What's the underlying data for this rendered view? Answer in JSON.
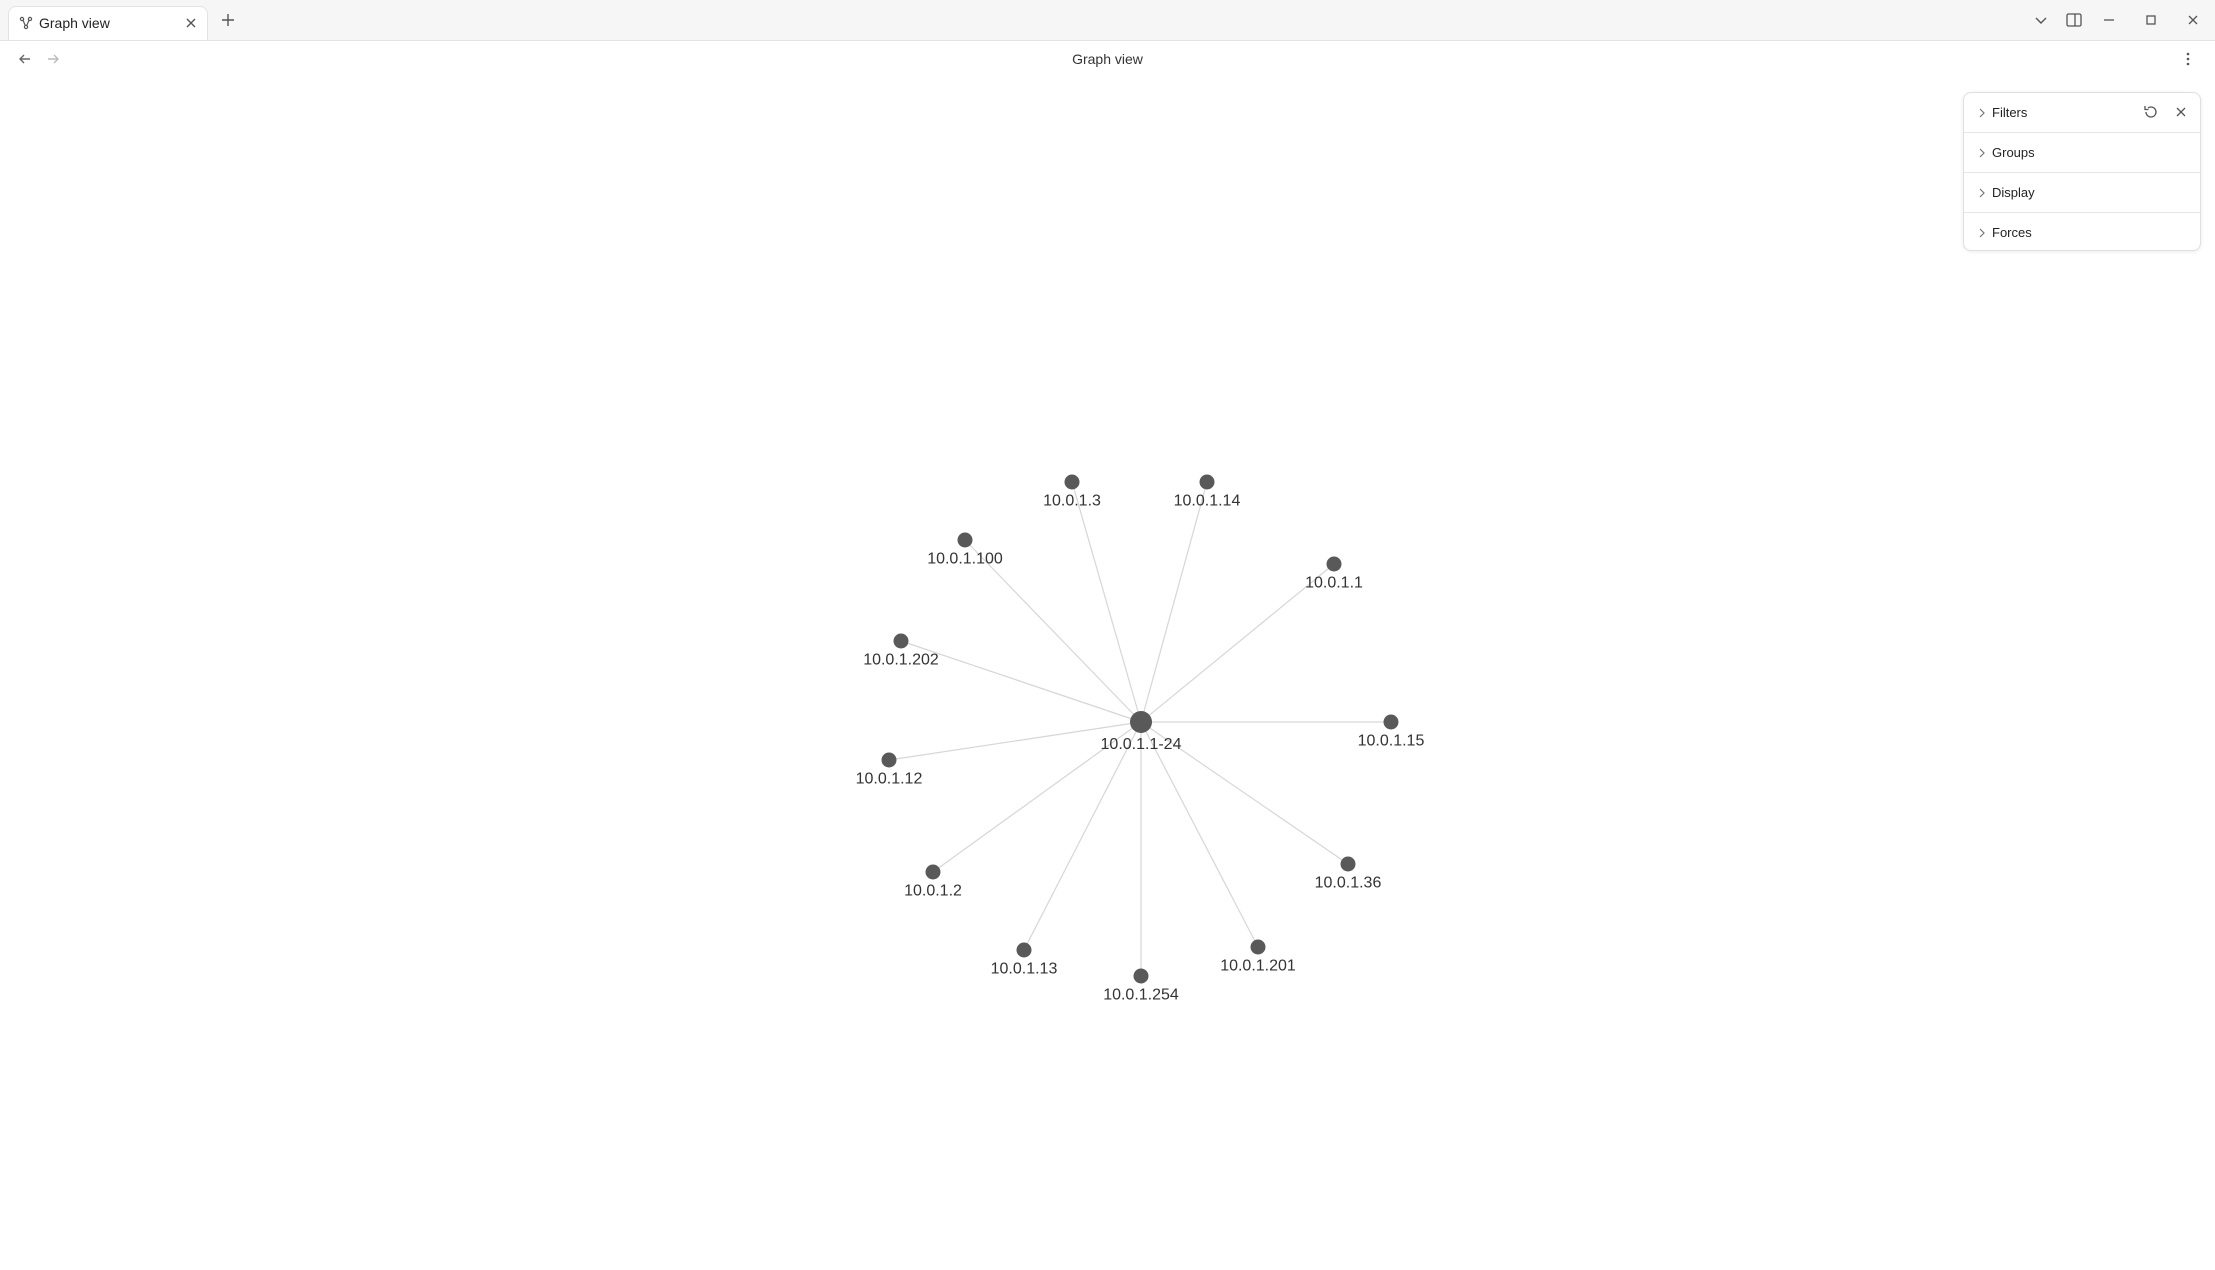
{
  "tabbar": {
    "tabs": [
      {
        "label": "Graph view",
        "icon": "graph-icon",
        "active": true
      }
    ]
  },
  "navbar": {
    "title": "Graph view"
  },
  "graph": {
    "center": {
      "id": "10.0.1.1-24",
      "label": "10.0.1.1-24"
    },
    "nodes": [
      {
        "id": "n3",
        "label": "10.0.1.3"
      },
      {
        "id": "n14",
        "label": "10.0.1.14"
      },
      {
        "id": "n100",
        "label": "10.0.1.100"
      },
      {
        "id": "n1",
        "label": "10.0.1.1"
      },
      {
        "id": "n202",
        "label": "10.0.1.202"
      },
      {
        "id": "n15",
        "label": "10.0.1.15"
      },
      {
        "id": "n12",
        "label": "10.0.1.12"
      },
      {
        "id": "n2",
        "label": "10.0.1.2"
      },
      {
        "id": "n36",
        "label": "10.0.1.36"
      },
      {
        "id": "n13",
        "label": "10.0.1.13"
      },
      {
        "id": "n201",
        "label": "10.0.1.201"
      },
      {
        "id": "n254",
        "label": "10.0.1.254"
      }
    ],
    "colors": {
      "node": "#595959",
      "edge": "#d6d6d6",
      "label": "#333333"
    }
  },
  "panel": {
    "sections": [
      {
        "label": "Filters"
      },
      {
        "label": "Groups"
      },
      {
        "label": "Display"
      },
      {
        "label": "Forces"
      }
    ]
  }
}
